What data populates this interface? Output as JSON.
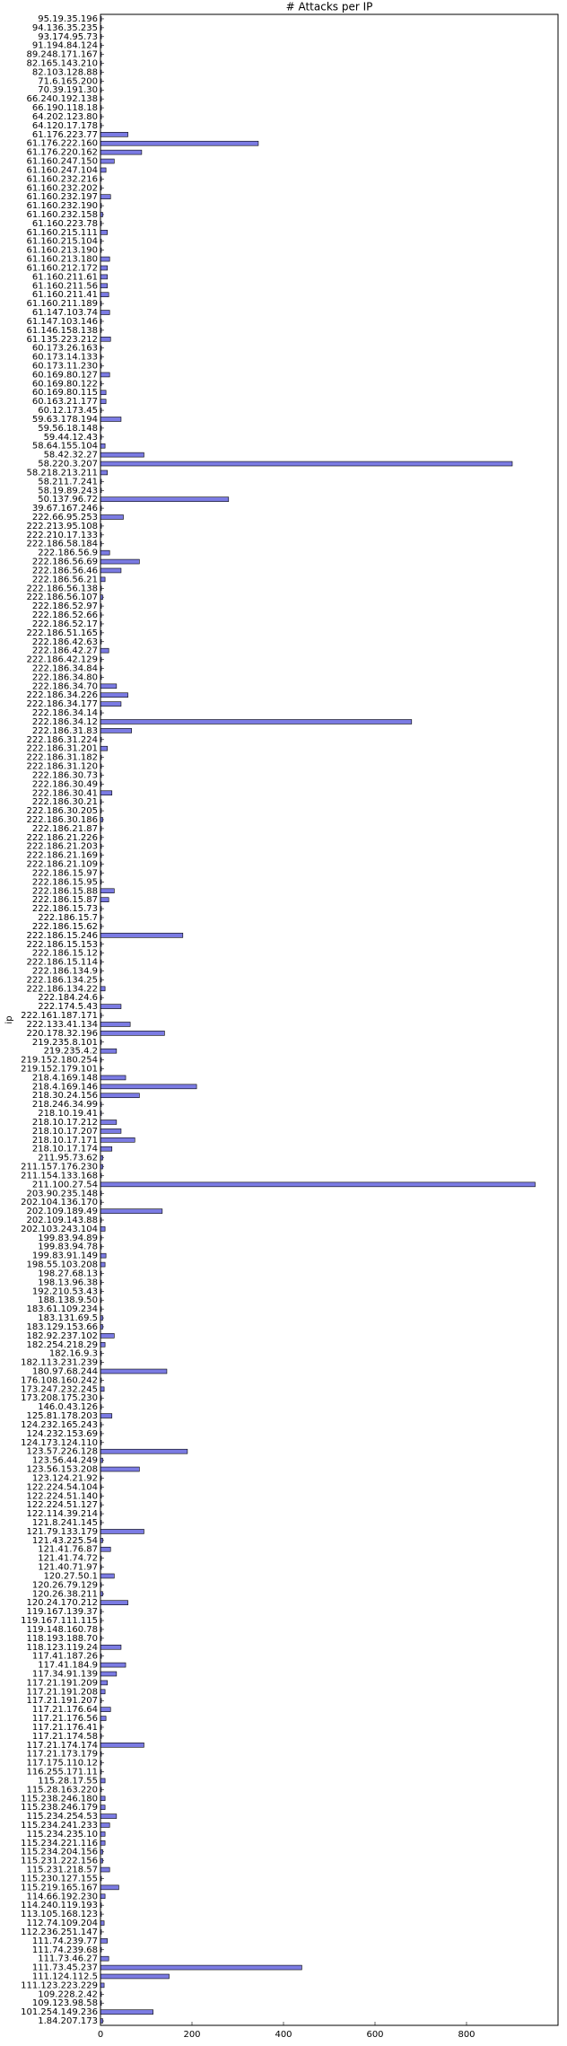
{
  "chart_data": {
    "type": "barh",
    "title": "# Attacks per IP",
    "y_label": "ip",
    "color": "#7b7be3",
    "edge_color": "#000000",
    "categories": [
      "95.19.35.196",
      "94.136.35.235",
      "93.174.95.73",
      "91.194.84.124",
      "89.248.171.167",
      "82.165.143.210",
      "82.103.128.88",
      "71.6.165.200",
      "70.39.191.30",
      "66.240.192.138",
      "66.190.118.18",
      "64.202.123.80",
      "64.120.17.178",
      "61.176.223.77",
      "61.176.222.160",
      "61.176.220.162",
      "61.160.247.150",
      "61.160.247.104",
      "61.160.232.216",
      "61.160.232.202",
      "61.160.232.197",
      "61.160.232.190",
      "61.160.232.158",
      "61.160.223.78",
      "61.160.215.111",
      "61.160.215.104",
      "61.160.213.190",
      "61.160.213.180",
      "61.160.212.172",
      "61.160.211.61",
      "61.160.211.56",
      "61.160.211.41",
      "61.160.211.189",
      "61.147.103.74",
      "61.147.103.146",
      "61.146.158.138",
      "61.135.223.212",
      "60.173.26.163",
      "60.173.14.133",
      "60.173.11.230",
      "60.169.80.127",
      "60.169.80.122",
      "60.169.80.115",
      "60.163.21.177",
      "60.12.173.45",
      "59.63.178.194",
      "59.56.18.148",
      "59.44.12.43",
      "58.64.155.104",
      "58.42.32.27",
      "58.220.3.207",
      "58.218.213.211",
      "58.211.7.241",
      "58.19.89.243",
      "50.137.96.72",
      "39.67.167.246",
      "222.66.95.253",
      "222.213.95.108",
      "222.210.17.133",
      "222.186.58.184",
      "222.186.56.9",
      "222.186.56.69",
      "222.186.56.46",
      "222.186.56.21",
      "222.186.56.138",
      "222.186.56.107",
      "222.186.52.97",
      "222.186.52.66",
      "222.186.52.17",
      "222.186.51.165",
      "222.186.42.63",
      "222.186.42.27",
      "222.186.42.129",
      "222.186.34.84",
      "222.186.34.80",
      "222.186.34.70",
      "222.186.34.226",
      "222.186.34.177",
      "222.186.34.14",
      "222.186.34.12",
      "222.186.31.83",
      "222.186.31.224",
      "222.186.31.201",
      "222.186.31.182",
      "222.186.31.120",
      "222.186.30.73",
      "222.186.30.49",
      "222.186.30.41",
      "222.186.30.21",
      "222.186.30.205",
      "222.186.30.186",
      "222.186.21.87",
      "222.186.21.226",
      "222.186.21.203",
      "222.186.21.169",
      "222.186.21.109",
      "222.186.15.97",
      "222.186.15.95",
      "222.186.15.88",
      "222.186.15.87",
      "222.186.15.73",
      "222.186.15.7",
      "222.186.15.62",
      "222.186.15.246",
      "222.186.15.153",
      "222.186.15.12",
      "222.186.15.114",
      "222.186.134.9",
      "222.186.134.25",
      "222.186.134.22",
      "222.184.24.6",
      "222.174.5.43",
      "222.161.187.171",
      "222.133.41.134",
      "220.178.32.196",
      "219.235.8.101",
      "219.235.4.2",
      "219.152.180.254",
      "219.152.179.101",
      "218.4.169.148",
      "218.4.169.146",
      "218.30.24.156",
      "218.246.34.99",
      "218.10.19.41",
      "218.10.17.212",
      "218.10.17.207",
      "218.10.17.171",
      "218.10.17.174",
      "211.95.73.62",
      "211.157.176.230",
      "211.154.133.168",
      "211.100.27.54",
      "203.90.235.148",
      "202.104.136.170",
      "202.109.189.49",
      "202.109.143.88",
      "202.103.243.104",
      "199.83.94.89",
      "199.83.94.78",
      "199.83.91.149",
      "198.55.103.208",
      "198.27.68.13",
      "198.13.96.38",
      "192.210.53.43",
      "188.138.9.50",
      "183.61.109.234",
      "183.131.69.5",
      "183.129.153.66",
      "182.92.237.102",
      "182.254.218.29",
      "182.16.9.3",
      "182.113.231.239",
      "180.97.68.244",
      "176.108.160.242",
      "173.247.232.245",
      "173.208.175.230",
      "146.0.43.126",
      "125.81.178.203",
      "124.232.165.243",
      "124.232.153.69",
      "124.173.124.110",
      "123.57.226.128",
      "123.56.44.249",
      "123.56.153.208",
      "123.124.21.92",
      "122.224.54.104",
      "122.224.51.140",
      "122.224.51.127",
      "122.114.39.214",
      "121.8.241.145",
      "121.79.133.179",
      "121.43.225.54",
      "121.41.76.87",
      "121.41.74.72",
      "121.40.71.97",
      "120.27.50.1",
      "120.26.79.129",
      "120.26.38.211",
      "120.24.170.212",
      "119.167.139.37",
      "119.167.111.115",
      "119.148.160.78",
      "118.193.188.70",
      "118.123.119.24",
      "117.41.187.26",
      "117.41.184.9",
      "117.34.91.139",
      "117.21.191.209",
      "117.21.191.208",
      "117.21.191.207",
      "117.21.176.64",
      "117.21.176.56",
      "117.21.176.41",
      "117.21.174.58",
      "117.21.174.174",
      "117.21.173.179",
      "117.175.110.12",
      "116.255.171.11",
      "115.28.17.55",
      "115.28.163.220",
      "115.238.246.180",
      "115.238.246.179",
      "115.234.254.53",
      "115.234.241.233",
      "115.234.235.10",
      "115.234.221.116",
      "115.234.204.156",
      "115.231.222.156",
      "115.231.218.57",
      "115.230.127.155",
      "115.219.165.167",
      "114.66.192.230",
      "114.240.119.193",
      "113.105.168.123",
      "112.74.109.204",
      "112.236.251.147",
      "111.74.239.77",
      "111.74.239.68",
      "111.73.46.27",
      "111.73.45.237",
      "111.124.112.5",
      "111.123.223.229",
      "109.228.2.42",
      "109.123.98.58",
      "101.254.149.236",
      "1.84.207.173"
    ],
    "values": [
      2,
      2,
      2,
      2,
      2,
      2,
      2,
      2,
      2,
      2,
      2,
      2,
      2,
      60,
      345,
      90,
      30,
      12,
      2,
      2,
      22,
      2,
      5,
      2,
      15,
      2,
      2,
      20,
      15,
      15,
      15,
      18,
      2,
      20,
      2,
      2,
      22,
      2,
      2,
      2,
      20,
      2,
      12,
      12,
      2,
      45,
      2,
      2,
      10,
      95,
      900,
      15,
      2,
      2,
      280,
      2,
      50,
      2,
      2,
      2,
      20,
      85,
      45,
      10,
      2,
      5,
      2,
      2,
      2,
      2,
      2,
      18,
      2,
      2,
      2,
      35,
      60,
      45,
      2,
      680,
      68,
      2,
      15,
      2,
      2,
      2,
      2,
      25,
      2,
      2,
      5,
      2,
      2,
      2,
      2,
      2,
      2,
      2,
      30,
      18,
      2,
      2,
      2,
      180,
      2,
      2,
      2,
      2,
      2,
      10,
      2,
      45,
      2,
      65,
      140,
      2,
      35,
      2,
      2,
      55,
      210,
      85,
      2,
      2,
      35,
      45,
      75,
      25,
      5,
      5,
      2,
      950,
      2,
      2,
      135,
      2,
      10,
      2,
      2,
      12,
      10,
      2,
      2,
      2,
      2,
      2,
      5,
      5,
      30,
      10,
      2,
      2,
      145,
      2,
      8,
      2,
      2,
      25,
      2,
      2,
      2,
      190,
      5,
      85,
      2,
      2,
      2,
      2,
      2,
      2,
      95,
      5,
      22,
      2,
      2,
      30,
      2,
      5,
      60,
      2,
      2,
      2,
      2,
      45,
      2,
      55,
      35,
      15,
      10,
      2,
      22,
      12,
      2,
      2,
      95,
      2,
      2,
      2,
      10,
      2,
      10,
      10,
      35,
      20,
      10,
      10,
      5,
      5,
      20,
      2,
      40,
      10,
      2,
      2,
      8,
      2,
      15,
      2,
      18,
      440,
      150,
      8,
      2,
      2,
      115,
      5
    ],
    "xlim": [
      0,
      1000
    ],
    "xticks": [
      0,
      200,
      400,
      600,
      800
    ]
  }
}
